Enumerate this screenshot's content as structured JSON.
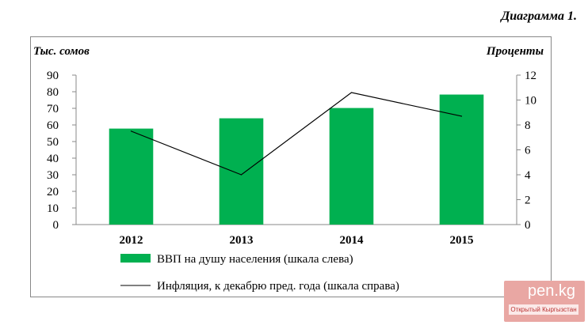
{
  "title": "Диаграмма 1.",
  "watermark": {
    "logo": "pen.kg",
    "subtitle": "Открытый Кыргызстан"
  },
  "chart_data": {
    "type": "bar",
    "categories": [
      "2012",
      "2013",
      "2014",
      "2015"
    ],
    "series": [
      {
        "name": "ВВП на душу населения (шкала слева)",
        "kind": "bar",
        "axis": "left",
        "color": "#00b050",
        "values": [
          57.8,
          64.0,
          70.2,
          78.3
        ]
      },
      {
        "name": "Инфляция, к декабрю пред. года (шкала справа)",
        "kind": "line",
        "axis": "right",
        "color": "#000000",
        "values": [
          7.5,
          4.0,
          10.6,
          8.7
        ]
      }
    ],
    "ylabel": "Тыс. сомов",
    "y2label": "Проценты",
    "ylim": [
      0,
      90
    ],
    "y2lim": [
      0,
      12
    ],
    "yticks": [
      "0",
      "10",
      "20",
      "30",
      "40",
      "50",
      "60",
      "70",
      "80",
      "90"
    ],
    "y2ticks": [
      "0",
      "2",
      "4",
      "6",
      "8",
      "10",
      "12"
    ],
    "grid": false,
    "legend": "bottom"
  }
}
